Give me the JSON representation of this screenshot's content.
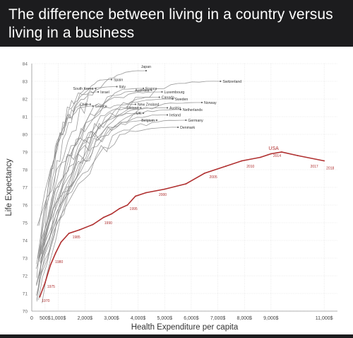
{
  "header": {
    "title": "The difference between living in a country versus living in a business"
  },
  "chart_data": {
    "type": "line",
    "title": "",
    "xlabel": "Health Expenditure per capita",
    "ylabel": "Life Expectancy",
    "xlim": [
      0,
      11500
    ],
    "ylim": [
      70,
      84
    ],
    "grid": true,
    "x_ticks": [
      {
        "v": 0,
        "label": "0"
      },
      {
        "v": 500,
        "label": "500$"
      },
      {
        "v": 1000,
        "label": "1,000$"
      },
      {
        "v": 2000,
        "label": "2,000$"
      },
      {
        "v": 3000,
        "label": "3,000$"
      },
      {
        "v": 4000,
        "label": "4,000$"
      },
      {
        "v": 5000,
        "label": "5,000$"
      },
      {
        "v": 6000,
        "label": "6,000$"
      },
      {
        "v": 7000,
        "label": "7,000$"
      },
      {
        "v": 8000,
        "label": "8,000$"
      },
      {
        "v": 9000,
        "label": "9,000$"
      },
      {
        "v": 11000,
        "label": "11,000$"
      }
    ],
    "y_ticks": [
      70,
      71,
      72,
      73,
      74,
      75,
      76,
      77,
      78,
      79,
      80,
      81,
      82,
      83,
      84
    ],
    "usa": {
      "color": "#b03030",
      "points": [
        [
          300,
          70.8
        ],
        [
          500,
          71.6
        ],
        [
          700,
          72.6
        ],
        [
          900,
          73.3
        ],
        [
          1100,
          73.9
        ],
        [
          1400,
          74.4
        ],
        [
          1800,
          74.6
        ],
        [
          2300,
          74.9
        ],
        [
          2700,
          75.3
        ],
        [
          3000,
          75.5
        ],
        [
          3300,
          75.8
        ],
        [
          3600,
          76.0
        ],
        [
          3900,
          76.5
        ],
        [
          4300,
          76.7
        ],
        [
          5000,
          76.9
        ],
        [
          5800,
          77.2
        ],
        [
          6500,
          77.8
        ],
        [
          7300,
          78.2
        ],
        [
          7900,
          78.5
        ],
        [
          8600,
          78.7
        ],
        [
          9000,
          78.9
        ],
        [
          9400,
          79.0
        ],
        [
          10000,
          78.8
        ],
        [
          11000,
          78.5
        ]
      ],
      "year_labels": [
        {
          "year": "1970",
          "x": 300,
          "y": 70.8
        },
        {
          "year": "1975",
          "x": 500,
          "y": 71.6
        },
        {
          "year": "1980",
          "x": 800,
          "y": 73.0
        },
        {
          "year": "1985",
          "x": 1450,
          "y": 74.4
        },
        {
          "year": "1990",
          "x": 2650,
          "y": 75.2
        },
        {
          "year": "1995",
          "x": 3600,
          "y": 76.0
        },
        {
          "year": "2000",
          "x": 4700,
          "y": 76.8
        },
        {
          "year": "2005",
          "x": 6600,
          "y": 77.8
        },
        {
          "year": "2010",
          "x": 8000,
          "y": 78.4
        },
        {
          "year": "2014",
          "x": 9000,
          "y": 79.0
        },
        {
          "year": "2017",
          "x": 10400,
          "y": 78.4
        },
        {
          "year": "2018",
          "x": 11000,
          "y": 78.3
        }
      ],
      "name_label": "USA"
    },
    "series": [
      {
        "name": "Japan",
        "end": [
          4300,
          83.6
        ],
        "label_pos": "above"
      },
      {
        "name": "Switzerland",
        "end": [
          7100,
          83.0
        ],
        "label_pos": "right"
      },
      {
        "name": "Spain",
        "end": [
          3000,
          83.1
        ],
        "label_pos": "right"
      },
      {
        "name": "Italy",
        "end": [
          3200,
          82.7
        ],
        "label_pos": "right"
      },
      {
        "name": "South Korea",
        "end": [
          2400,
          82.6
        ],
        "label_pos": "left"
      },
      {
        "name": "Israel",
        "end": [
          2500,
          82.4
        ],
        "label_pos": "right"
      },
      {
        "name": "France",
        "end": [
          4200,
          82.6
        ],
        "label_pos": "right"
      },
      {
        "name": "Australia",
        "end": [
          4500,
          82.5
        ],
        "label_pos": "left"
      },
      {
        "name": "Luxembourg",
        "end": [
          4900,
          82.4
        ],
        "label_pos": "right"
      },
      {
        "name": "Canada",
        "end": [
          4800,
          82.1
        ],
        "label_pos": "right"
      },
      {
        "name": "Sweden",
        "end": [
          5300,
          82.0
        ],
        "label_pos": "right"
      },
      {
        "name": "Norway",
        "end": [
          6400,
          81.8
        ],
        "label_pos": "right"
      },
      {
        "name": "Chile",
        "end": [
          2200,
          81.7
        ],
        "label_pos": "left"
      },
      {
        "name": "Greece",
        "end": [
          2300,
          81.6
        ],
        "label_pos": "right"
      },
      {
        "name": "New Zealand",
        "end": [
          3900,
          81.7
        ],
        "label_pos": "right"
      },
      {
        "name": "Finland",
        "end": [
          4100,
          81.5
        ],
        "label_pos": "left"
      },
      {
        "name": "UK",
        "end": [
          4200,
          81.2
        ],
        "label_pos": "left"
      },
      {
        "name": "Austria",
        "end": [
          5100,
          81.5
        ],
        "label_pos": "right"
      },
      {
        "name": "Netherlands",
        "end": [
          5600,
          81.4
        ],
        "label_pos": "right"
      },
      {
        "name": "Ireland",
        "end": [
          5100,
          81.1
        ],
        "label_pos": "right"
      },
      {
        "name": "Belgium",
        "end": [
          4700,
          80.8
        ],
        "label_pos": "left"
      },
      {
        "name": "Germany",
        "end": [
          5800,
          80.8
        ],
        "label_pos": "right"
      },
      {
        "name": "Denmark",
        "end": [
          5500,
          80.4
        ],
        "label_pos": "right"
      }
    ]
  }
}
